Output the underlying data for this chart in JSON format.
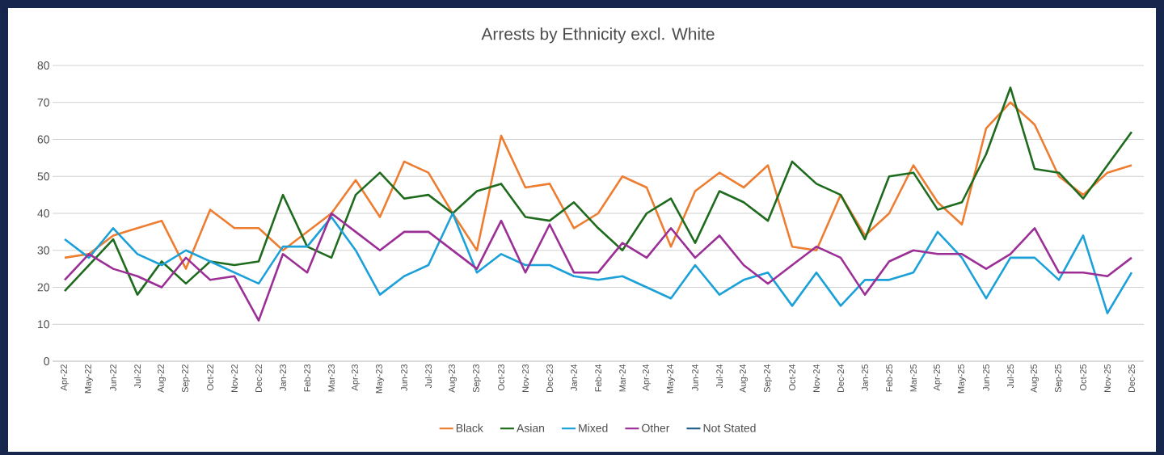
{
  "chart_data": {
    "type": "line",
    "title": "Arrests by Ethnicity excl. White",
    "categories": [
      "Apr-22",
      "May-22",
      "Jun-22",
      "Jul-22",
      "Aug-22",
      "Sep-22",
      "Oct-22",
      "Nov-22",
      "Dec-22",
      "Jan-23",
      "Feb-23",
      "Mar-23",
      "Apr-23",
      "May-23",
      "Jun-23",
      "Jul-23",
      "Aug-23",
      "Sep-23",
      "Oct-23",
      "Nov-23",
      "Dec-23",
      "Jan-24",
      "Feb-24",
      "Mar-24",
      "Apr-24",
      "May-24",
      "Jun-24",
      "Jul-24",
      "Aug-24",
      "Sep-24",
      "Oct-24",
      "Nov-24",
      "Dec-24",
      "Jan-25",
      "Feb-25",
      "Mar-25",
      "Apr-25",
      "May-25",
      "Jun-25",
      "Jul-25",
      "Aug-25",
      "Sep-25",
      "Oct-25",
      "Nov-25",
      "Dec-25"
    ],
    "series": [
      {
        "name": "Black",
        "color": "#ed7d31",
        "values": [
          28,
          29,
          34,
          36,
          38,
          25,
          41,
          36,
          36,
          30,
          35,
          40,
          49,
          39,
          54,
          51,
          40,
          30,
          61,
          47,
          48,
          36,
          40,
          50,
          47,
          31,
          46,
          51,
          47,
          53,
          31,
          30,
          45,
          34,
          40,
          53,
          43,
          37,
          63,
          70,
          64,
          50,
          45,
          51,
          53
        ]
      },
      {
        "name": "Asian",
        "color": "#1e6b1e",
        "values": [
          19,
          26,
          33,
          18,
          27,
          21,
          27,
          26,
          27,
          45,
          31,
          28,
          45,
          51,
          44,
          45,
          40,
          46,
          48,
          39,
          38,
          43,
          36,
          30,
          40,
          44,
          32,
          46,
          43,
          38,
          54,
          48,
          45,
          33,
          50,
          51,
          41,
          43,
          56,
          74,
          52,
          51,
          44,
          53,
          62
        ]
      },
      {
        "name": "Mixed",
        "color": "#1ba1d8",
        "values": [
          33,
          28,
          36,
          29,
          26,
          30,
          27,
          24,
          21,
          31,
          31,
          39,
          30,
          18,
          23,
          26,
          40,
          24,
          29,
          26,
          26,
          23,
          22,
          23,
          20,
          17,
          26,
          18,
          22,
          24,
          15,
          24,
          15,
          22,
          22,
          24,
          35,
          28,
          17,
          28,
          28,
          22,
          34,
          13,
          24
        ]
      },
      {
        "name": "Other",
        "color": "#9b2f96",
        "values": [
          22,
          29,
          25,
          23,
          20,
          28,
          22,
          23,
          11,
          29,
          24,
          40,
          35,
          30,
          35,
          35,
          30,
          25,
          38,
          24,
          37,
          24,
          24,
          32,
          28,
          36,
          28,
          34,
          26,
          21,
          26,
          31,
          28,
          18,
          27,
          30,
          29,
          29,
          25,
          29,
          36,
          24,
          24,
          23,
          28
        ]
      },
      {
        "name": "Not Stated",
        "color": "#1f5f8a",
        "values": [
          null,
          null,
          null,
          null,
          null,
          null,
          null,
          null,
          null,
          null,
          null,
          null,
          null,
          null,
          null,
          null,
          null,
          null,
          null,
          null,
          null,
          null,
          null,
          null,
          null,
          null,
          null,
          null,
          null,
          null,
          null,
          null,
          null,
          null,
          null,
          null,
          null,
          null,
          null,
          null,
          null,
          null,
          null,
          null,
          null
        ]
      }
    ],
    "ylim": [
      0,
      80
    ],
    "yticks": [
      0,
      10,
      20,
      30,
      40,
      50,
      60,
      70,
      80
    ],
    "grid": "y",
    "legend": "bottom",
    "marker": "none",
    "line_style": "solid"
  }
}
